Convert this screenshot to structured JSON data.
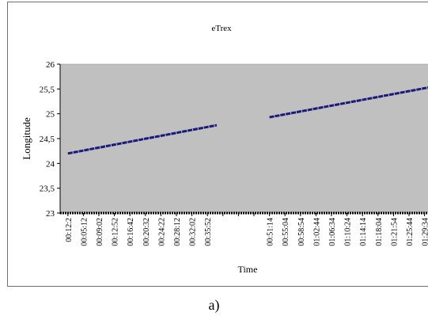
{
  "caption": "a)",
  "chart_data": {
    "type": "line",
    "title": "eTrex",
    "xlabel": "Time",
    "ylabel": "Longitude",
    "ylim": [
      23,
      26
    ],
    "yticks": [
      "23",
      "23,5",
      "24",
      "24,5",
      "25",
      "25,5",
      "26"
    ],
    "grid": false,
    "legend": "none",
    "categories": [
      "00:12:2",
      "00:05:12",
      "00:09:02",
      "00:12:52",
      "00:16:42",
      "00:20:32",
      "00:24:22",
      "00:28:12",
      "00:32:02",
      "00:35:52",
      "",
      "",
      "",
      "00:51:14",
      "00:55:04",
      "00:58:54",
      "01:02:44",
      "01:06:34",
      "01:10:24",
      "01:14:14",
      "01:18:04",
      "01:21:54",
      "01:25:44",
      "01:29:34"
    ],
    "series": [
      {
        "color": "#1a1a7a",
        "segments": [
          {
            "x": [
              0,
              9.6
            ],
            "y": [
              24.2,
              24.77
            ]
          },
          {
            "x": [
              13,
              23.6
            ],
            "y": [
              24.93,
              25.55
            ]
          }
        ]
      }
    ],
    "colors": {
      "plot_bg": "#c0c0c0",
      "line": "#1a1a7a",
      "frame": "#6e6e6e"
    }
  }
}
